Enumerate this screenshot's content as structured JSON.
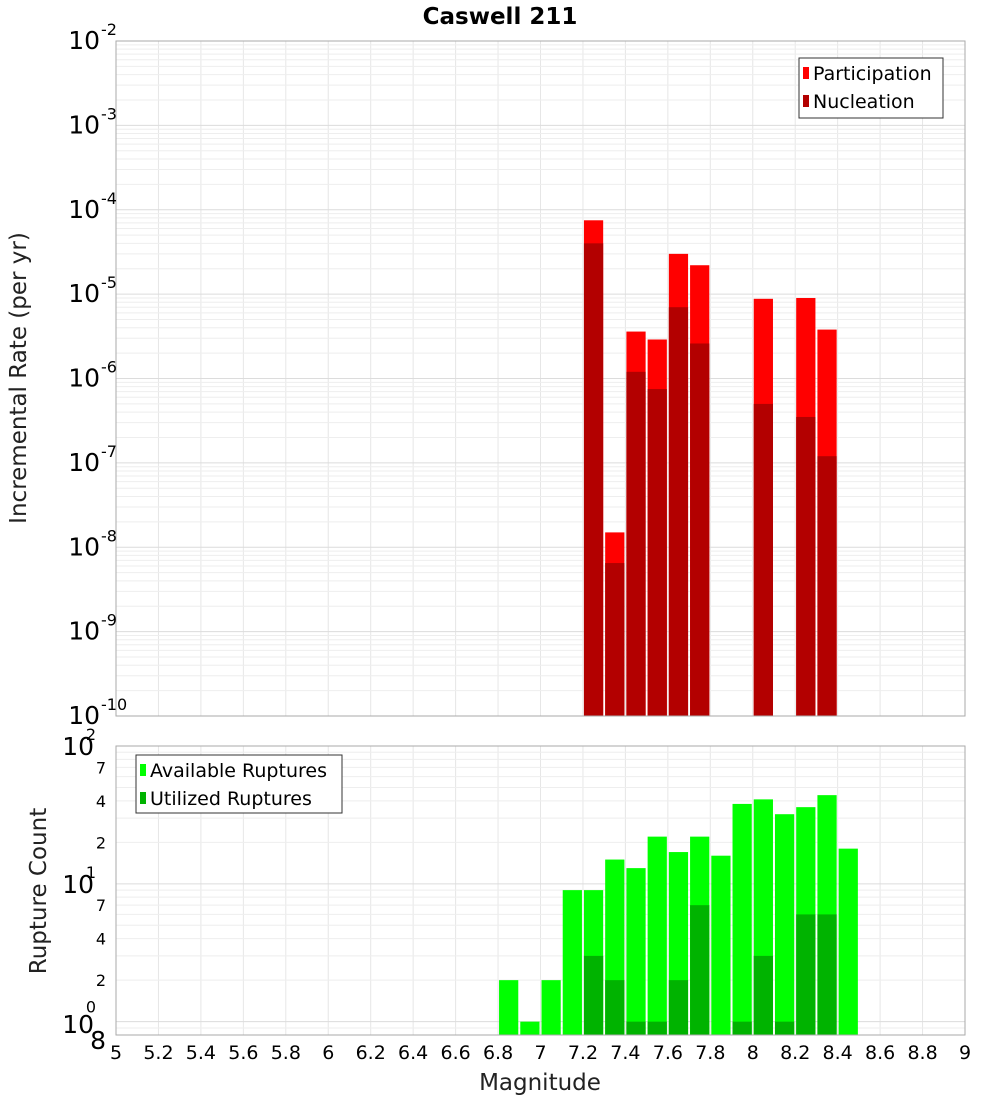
{
  "chart_data": [
    {
      "type": "bar",
      "title": "Caswell 211",
      "xlabel": "",
      "ylabel": "Incremental Rate (per yr)",
      "y_scale": "log",
      "xlim": [
        5,
        9
      ],
      "ylim": [
        1e-10,
        0.01
      ],
      "ytick_labels": [
        {
          "base": "10",
          "exp": "-10"
        },
        {
          "base": "10",
          "exp": "-9"
        },
        {
          "base": "10",
          "exp": "-8"
        },
        {
          "base": "10",
          "exp": "-7"
        },
        {
          "base": "10",
          "exp": "-6"
        },
        {
          "base": "10",
          "exp": "-5"
        },
        {
          "base": "10",
          "exp": "-4"
        },
        {
          "base": "10",
          "exp": "-3"
        },
        {
          "base": "10",
          "exp": "-2"
        }
      ],
      "grid": true,
      "legend_position": "top-right",
      "x": [
        7.25,
        7.35,
        7.45,
        7.55,
        7.65,
        7.75,
        8.05,
        8.25,
        8.35
      ],
      "series": [
        {
          "name": "Participation",
          "color": "#ff0000",
          "values": [
            7.5e-05,
            1.5e-08,
            3.6e-06,
            2.9e-06,
            3e-05,
            2.2e-05,
            8.8e-06,
            9e-06,
            3.8e-06
          ]
        },
        {
          "name": "Nucleation",
          "color": "#b30000",
          "values": [
            4e-05,
            6.5e-09,
            1.2e-06,
            7.5e-07,
            7e-06,
            2.6e-06,
            5e-07,
            3.5e-07,
            1.2e-07
          ]
        }
      ]
    },
    {
      "type": "bar",
      "title": "",
      "xlabel": "Magnitude",
      "ylabel": "Rupture Count",
      "y_scale": "log",
      "xlim": [
        5,
        9
      ],
      "ylim": [
        0.8,
        100
      ],
      "ytick_labels": [
        {
          "base": "10",
          "exp": "0"
        },
        {
          "base": "10",
          "exp": "1"
        },
        {
          "base": "10",
          "exp": "2"
        }
      ],
      "minor_tick_labels": [
        {
          "value": 0.8,
          "label": "8"
        },
        {
          "value": 2,
          "label": "2"
        },
        {
          "value": 4,
          "label": "4"
        },
        {
          "value": 7,
          "label": "7"
        },
        {
          "value": 20,
          "label": "2"
        },
        {
          "value": 40,
          "label": "4"
        },
        {
          "value": 70,
          "label": "7"
        }
      ],
      "xticks": [
        "5",
        "5.2",
        "5.4",
        "5.6",
        "5.8",
        "6",
        "6.2",
        "6.4",
        "6.6",
        "6.8",
        "7",
        "7.2",
        "7.4",
        "7.6",
        "7.8",
        "8",
        "8.2",
        "8.4",
        "8.6",
        "8.8",
        "9"
      ],
      "grid": true,
      "legend_position": "top-left",
      "x": [
        6.85,
        6.95,
        7.05,
        7.15,
        7.25,
        7.35,
        7.45,
        7.55,
        7.65,
        7.75,
        7.85,
        7.95,
        8.05,
        8.15,
        8.25,
        8.35,
        8.45
      ],
      "series": [
        {
          "name": "Available Ruptures",
          "color": "#00ff00",
          "values": [
            2,
            1,
            2,
            9,
            9,
            15,
            13,
            22,
            17,
            22,
            16,
            38,
            41,
            32,
            36,
            44,
            18
          ]
        },
        {
          "name": "Utilized Ruptures",
          "color": "#00b300",
          "values": [
            null,
            null,
            null,
            null,
            3,
            2,
            1,
            1,
            2,
            7,
            null,
            1,
            3,
            1,
            6,
            6,
            null
          ]
        }
      ]
    }
  ]
}
